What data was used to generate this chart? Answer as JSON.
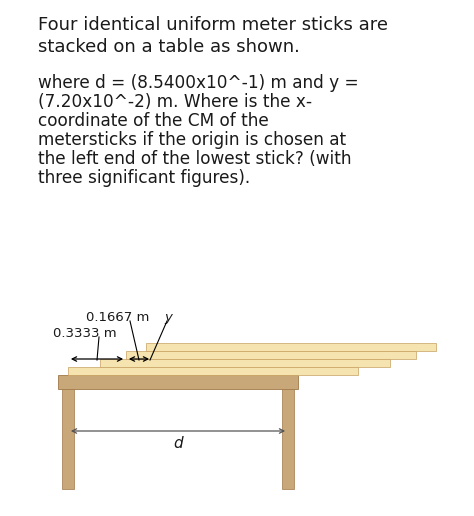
{
  "bg_color": "#ffffff",
  "text_color": "#1a1a1a",
  "title_line1": "Four identical uniform meter sticks are",
  "title_line2": "stacked on a table as shown.",
  "body_lines": [
    "where d = (8.5400x10^-1) m and y =",
    "(7.20x10^-2) m. Where is the x-",
    "coordinate of the CM of the",
    "metersticks if the origin is chosen at",
    "the left end of the lowest stick? (with",
    "three significant figures)."
  ],
  "label_0167": "0.1667 m",
  "label_0333": "0.3333 m",
  "label_y": "y",
  "label_d": "d",
  "stick_fill": "#f5e4b0",
  "stick_edge": "#c8a060",
  "table_top_fill": "#c8a878",
  "table_top_edge": "#a07848",
  "table_leg_fill": "#c8a878",
  "table_leg_edge": "#a07848",
  "fig_width": 4.74,
  "fig_height": 5.16,
  "dpi": 100
}
